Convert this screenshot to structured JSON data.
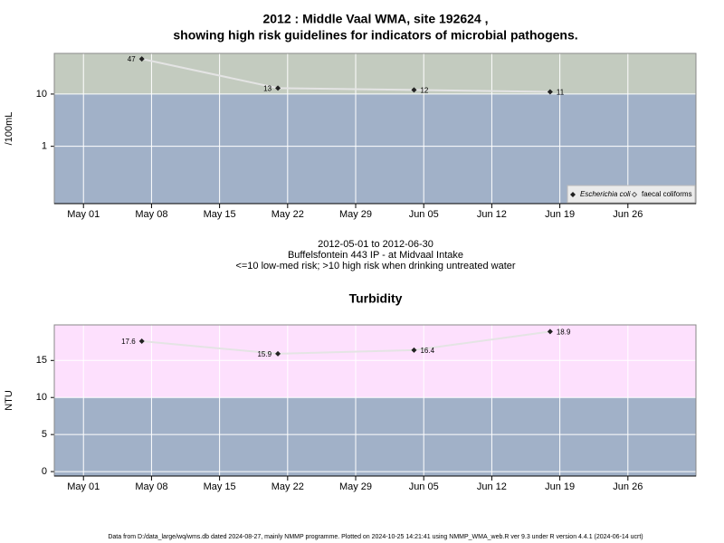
{
  "title": [
    "2012 : Middle Vaal WMA, site 192624 ,",
    "showing high risk guidelines for indicators of microbial pathogens."
  ],
  "caption": [
    "2012-05-01 to 2012-06-30",
    "Buffelsfontein 443 IP - at Midvaal Intake",
    "<=10 low-med risk; >10 high risk when drinking untreated water"
  ],
  "footer": "Data from D:/data_large/wq/wms.db dated 2024-08-27, mainly NMMP programme. Plotted on 2024-10-25 14:21:41 using NMMP_WMA_web.R ver 9.3 under R version 4.4.1 (2024-06-14 ucrt)",
  "chart_data": [
    {
      "type": "line",
      "ylabel": "/100mL",
      "log_y": true,
      "grid": true,
      "legend": "bottom-right",
      "x": [
        "2012-05-07",
        "2012-05-21",
        "2012-06-04",
        "2012-06-18"
      ],
      "xlim": [
        "2012-04-28",
        "2012-07-03"
      ],
      "xticks": [
        {
          "value": "2012-05-01",
          "label": "May 01"
        },
        {
          "value": "2012-05-08",
          "label": "May 08"
        },
        {
          "value": "2012-05-15",
          "label": "May 15"
        },
        {
          "value": "2012-05-22",
          "label": "May 22"
        },
        {
          "value": "2012-05-29",
          "label": "May 29"
        },
        {
          "value": "2012-06-05",
          "label": "Jun 05"
        },
        {
          "value": "2012-06-12",
          "label": "Jun 12"
        },
        {
          "value": "2012-06-19",
          "label": "Jun 19"
        },
        {
          "value": "2012-06-26",
          "label": "Jun 26"
        }
      ],
      "ylim": [
        0.08,
        60
      ],
      "yticks": [
        1,
        10
      ],
      "threshold": 10,
      "above_color": "#c3cbbf",
      "below_color": "#a1b1c8",
      "series": [
        {
          "name": "Escherichia coli",
          "color": "#222222",
          "line_color": "#e4e4e4",
          "values": [
            47,
            13,
            12,
            11
          ]
        },
        {
          "name": "faecal coliforms",
          "color": "#222222",
          "line_color": "#e4e4e4",
          "values": [
            null,
            null,
            null,
            null
          ]
        }
      ]
    },
    {
      "type": "line",
      "title": "Turbidity",
      "ylabel": "NTU",
      "log_y": false,
      "grid": true,
      "x": [
        "2012-05-07",
        "2012-05-21",
        "2012-06-04",
        "2012-06-18"
      ],
      "xlim": [
        "2012-04-28",
        "2012-07-03"
      ],
      "xticks": [
        {
          "value": "2012-05-01",
          "label": "May 01"
        },
        {
          "value": "2012-05-08",
          "label": "May 08"
        },
        {
          "value": "2012-05-15",
          "label": "May 15"
        },
        {
          "value": "2012-05-22",
          "label": "May 22"
        },
        {
          "value": "2012-05-29",
          "label": "May 29"
        },
        {
          "value": "2012-06-05",
          "label": "Jun 05"
        },
        {
          "value": "2012-06-12",
          "label": "Jun 12"
        },
        {
          "value": "2012-06-19",
          "label": "Jun 19"
        },
        {
          "value": "2012-06-26",
          "label": "Jun 26"
        }
      ],
      "ylim": [
        -0.6,
        19.8
      ],
      "yticks": [
        0,
        5,
        10,
        15
      ],
      "threshold": 10,
      "above_color": "#fde0fd",
      "below_color": "#a1b1c8",
      "series": [
        {
          "color": "#222222",
          "line_color": "#e4e4e4",
          "values": [
            17.6,
            15.9,
            16.4,
            18.9
          ]
        }
      ]
    }
  ]
}
